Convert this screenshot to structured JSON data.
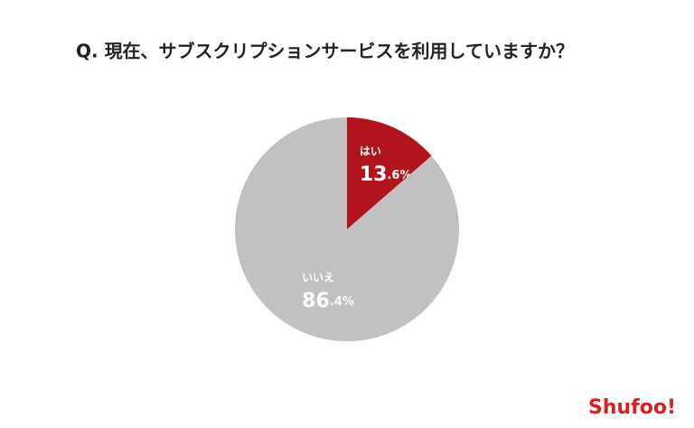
{
  "chart_data": {
    "type": "pie",
    "title": "Q. 現在、サブスクリプションサービスを利用していますか？",
    "categories": [
      "はい",
      "いいえ"
    ],
    "values": [
      13.6,
      86.4
    ],
    "value_labels": [
      "13.6%",
      "86.4%"
    ],
    "colors": [
      "#b3141b",
      "#c1c1c1"
    ],
    "logo": "Shufoo!"
  }
}
